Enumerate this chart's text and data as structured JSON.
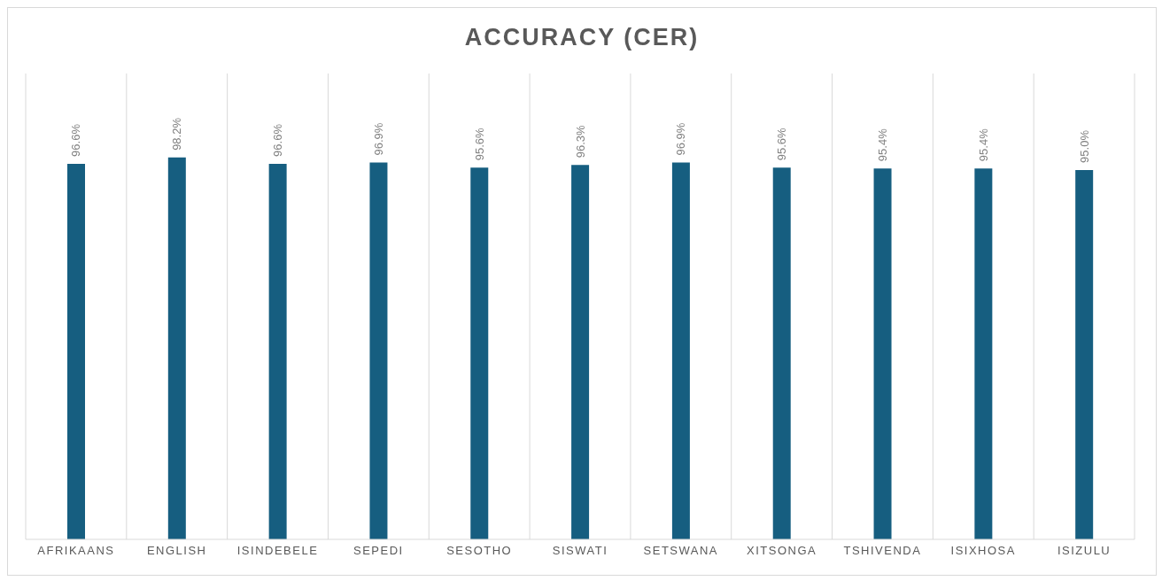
{
  "chart_data": {
    "type": "bar",
    "title": "ACCURACY (CER)",
    "categories": [
      "AFRIKAANS",
      "ENGLISH",
      "ISINDEBELE",
      "SEPEDI",
      "SESOTHO",
      "SISWATI",
      "SETSWANA",
      "XITSONGA",
      "TSHIVENDA",
      "ISIXHOSA",
      "ISIZULU"
    ],
    "values": [
      96.6,
      98.2,
      96.6,
      96.9,
      95.6,
      96.3,
      96.9,
      95.6,
      95.4,
      95.4,
      95.0
    ],
    "value_labels": [
      "96.6%",
      "98.2%",
      "96.6%",
      "96.9%",
      "95.6%",
      "96.3%",
      "96.9%",
      "95.6%",
      "95.4%",
      "95.4%",
      "95.0%"
    ],
    "color": "#165e80",
    "grid": "x",
    "legend": false
  }
}
